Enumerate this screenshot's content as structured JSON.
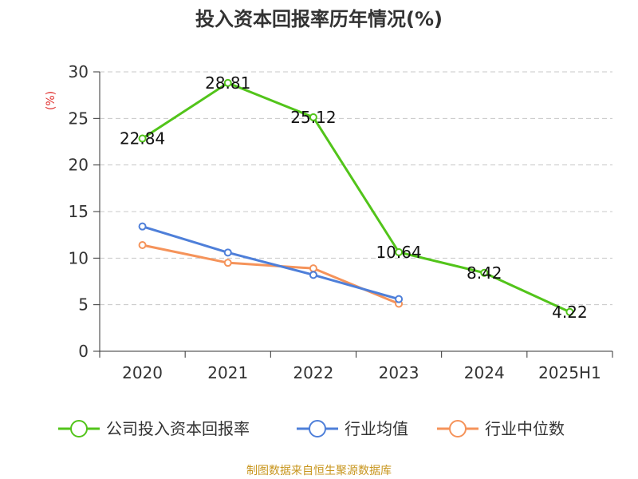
{
  "chart_data": {
    "type": "line",
    "title": "投入资本回报率历年情况(%)",
    "ylabel": "(%)",
    "categories": [
      "2020",
      "2021",
      "2022",
      "2023",
      "2024",
      "2025H1"
    ],
    "ylim": [
      0,
      30
    ],
    "yticks": [
      0,
      5,
      10,
      15,
      20,
      25,
      30
    ],
    "grid": true,
    "legend_position": "bottom",
    "series": [
      {
        "name": "公司投入资本回报率",
        "color": "#52c41a",
        "values": [
          22.84,
          28.81,
          25.12,
          10.64,
          8.42,
          4.22
        ],
        "labels": [
          "22.84",
          "28.81",
          "25.12",
          "10.64",
          "8.42",
          "4.22"
        ]
      },
      {
        "name": "行业均值",
        "color": "#4e7fd9",
        "values": [
          13.4,
          10.6,
          8.2,
          5.6,
          null,
          null
        ]
      },
      {
        "name": "行业中位数",
        "color": "#f5935a",
        "values": [
          11.4,
          9.5,
          8.9,
          5.1,
          null,
          null
        ]
      }
    ]
  },
  "footer": {
    "source": "制图数据来自恒生聚源数据库"
  }
}
